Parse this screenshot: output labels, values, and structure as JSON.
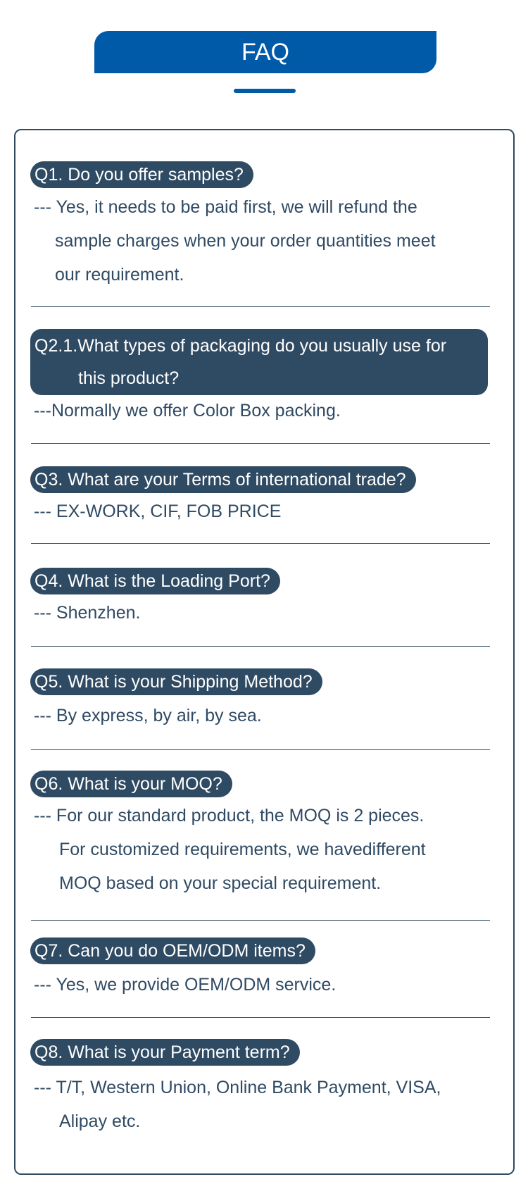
{
  "header": {
    "title": "FAQ"
  },
  "faq": [
    {
      "q": "Q1. Do you offer samples?",
      "a": [
        "--- Yes, it needs to be paid first, we will refund the",
        "sample charges when your order quantities meet",
        "our requirement."
      ]
    },
    {
      "q": [
        "Q2.1.What types of packaging do you usually use for",
        "this product?"
      ],
      "a": [
        "---Normally we offer Color Box packing."
      ]
    },
    {
      "q": "Q3. What are your Terms of international trade?",
      "a": [
        "--- EX-WORK, CIF, FOB PRICE"
      ]
    },
    {
      "q": "Q4. What is the Loading Port?",
      "a": [
        "--- Shenzhen."
      ]
    },
    {
      "q": "Q5. What is your Shipping Method?",
      "a": [
        "--- By express, by air, by sea."
      ]
    },
    {
      "q": "Q6. What is your MOQ?",
      "a": [
        "--- For our standard product, the MOQ is 2 pieces.",
        "For customized requirements, we havedifferent",
        "MOQ based on your special requirement."
      ]
    },
    {
      "q": "Q7. Can you do OEM/ODM items?",
      "a": [
        "--- Yes, we provide OEM/ODM service."
      ]
    },
    {
      "q": "Q8. What is your Payment term?",
      "a": [
        "--- T/T, Western Union, Online Bank Payment, VISA,",
        "Alipay etc."
      ]
    }
  ],
  "colors": {
    "brand": "#005aa8",
    "dark": "#2f4a63"
  }
}
